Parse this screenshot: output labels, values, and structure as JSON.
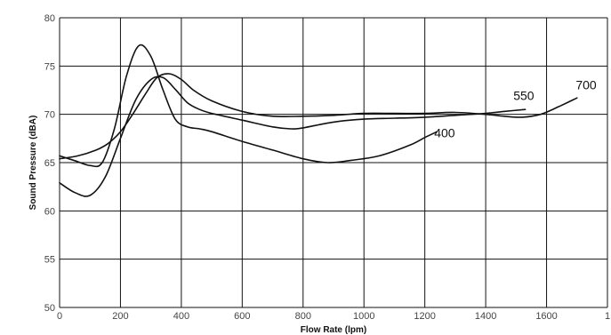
{
  "chart_data": {
    "type": "line",
    "xlabel": "Flow Rate (lpm)",
    "ylabel": "Sound Pressure (dBA)",
    "xlim": [
      0,
      1800
    ],
    "ylim": [
      50,
      80
    ],
    "x_ticks": [
      "0",
      "200",
      "400",
      "600",
      "800",
      "1000",
      "1200",
      "1400",
      "1600",
      "1"
    ],
    "y_ticks": [
      "50",
      "55",
      "60",
      "65",
      "70",
      "75",
      "80"
    ],
    "grid": true,
    "series": [
      {
        "name": "400",
        "x": [
          0,
          50,
          100,
          140,
          180,
          220,
          260,
          300,
          340,
          380,
          420,
          460,
          500,
          600,
          700,
          800,
          880,
          950,
          1050,
          1150,
          1200,
          1240
        ],
        "y": [
          65.7,
          65.2,
          64.7,
          65.0,
          68.5,
          74.0,
          77.1,
          76.0,
          72.5,
          69.5,
          68.7,
          68.5,
          68.2,
          67.2,
          66.3,
          65.4,
          65.0,
          65.2,
          65.7,
          66.8,
          67.6,
          68.2
        ]
      },
      {
        "name": "550",
        "x": [
          0,
          50,
          100,
          150,
          200,
          250,
          300,
          340,
          380,
          420,
          460,
          500,
          600,
          700,
          760,
          800,
          900,
          1000,
          1100,
          1200,
          1300,
          1400,
          1460,
          1530
        ],
        "y": [
          62.9,
          61.9,
          61.6,
          63.5,
          67.5,
          71.5,
          73.6,
          73.8,
          72.6,
          71.2,
          70.5,
          70.1,
          69.4,
          68.7,
          68.5,
          68.6,
          69.2,
          69.5,
          69.6,
          69.7,
          69.9,
          70.1,
          70.3,
          70.5
        ]
      },
      {
        "name": "700",
        "x": [
          0,
          60,
          120,
          160,
          200,
          240,
          280,
          320,
          360,
          400,
          440,
          500,
          600,
          700,
          800,
          900,
          1000,
          1100,
          1200,
          1300,
          1400,
          1460,
          1520,
          1580,
          1640,
          1700
        ],
        "y": [
          65.4,
          65.7,
          66.3,
          67.0,
          68.2,
          70.0,
          72.0,
          73.8,
          74.2,
          73.6,
          72.5,
          71.4,
          70.3,
          69.8,
          69.8,
          69.9,
          70.1,
          70.1,
          70.1,
          70.2,
          70.0,
          69.8,
          69.7,
          70.0,
          70.8,
          71.7
        ]
      }
    ],
    "annotations": [
      {
        "text": "400",
        "x": 1265,
        "y": 67.6
      },
      {
        "text": "550",
        "x": 1525,
        "y": 71.5
      },
      {
        "text": "700",
        "x": 1730,
        "y": 72.6
      }
    ]
  }
}
